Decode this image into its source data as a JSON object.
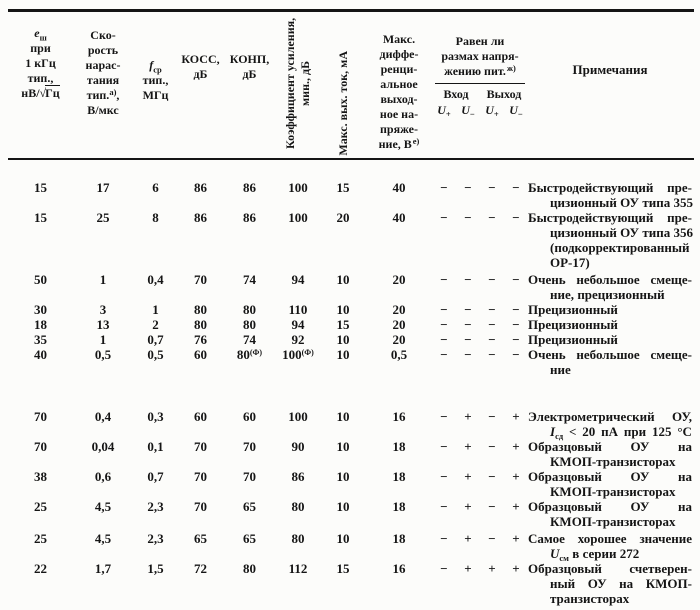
{
  "header": {
    "col1": {
      "sym": "e",
      "sym_sub": "ш",
      "l1": "при",
      "l2": "1 кГц",
      "l3": "тип.,",
      "unit_pre": "нВ/",
      "radical": "√",
      "radicand": "Гц"
    },
    "col2": {
      "l1": "Ско-",
      "l2": "рость",
      "l3": "нарас-",
      "l4": "тания",
      "l5": "тип.",
      "l5_sup": "а)",
      "l5_tail": ",",
      "l6": "В/мкс"
    },
    "col3": {
      "sym": "f",
      "sym_sub": "ср",
      "l1": "тип.,",
      "l2": "МГц"
    },
    "col4": {
      "l1": "КОСС,",
      "l2": "дБ"
    },
    "col5": {
      "l1": "КОНП,",
      "l2": "дБ"
    },
    "col6": {
      "line1": "Коэффициент усиления,",
      "line2": "мин., дБ"
    },
    "col7": {
      "line1": "Макс. вых. ток, мА"
    },
    "col8": {
      "l1": "Макс.",
      "l2": "диффе-",
      "l3": "ренци-",
      "l4": "альное",
      "l5": "выход-",
      "l6": "ное на-",
      "l7": "пряже-",
      "l8": "ние, В",
      "l8_sup": "е)"
    },
    "rail": {
      "title_l1": "Равен ли",
      "title_l2": "размах напря-",
      "title_l3": "жению пит.",
      "title_sup": "ж)",
      "in_label": "Вход",
      "out_label": "Выход",
      "u_sym": "U",
      "sub_plus": "+",
      "sub_minus": "−"
    },
    "notes_label": "Примечания"
  },
  "rows": [
    {
      "cells": [
        "15",
        "17",
        "6",
        "86",
        "86",
        "100",
        "15",
        "40"
      ],
      "signs": [
        "−",
        "−",
        "−",
        "−"
      ],
      "remark": [
        {
          "j": 1,
          "s": [
            {
              "t": "Быстродействующий пре-"
            }
          ]
        },
        {
          "ind": 1,
          "s": [
            {
              "t": "цизионный ОУ типа 355"
            }
          ]
        }
      ]
    },
    {
      "cells": [
        "15",
        "25",
        "8",
        "86",
        "86",
        "100",
        "20",
        "40"
      ],
      "signs": [
        "−",
        "−",
        "−",
        "−"
      ],
      "remark": [
        {
          "j": 1,
          "s": [
            {
              "t": "Быстродействующий пре-"
            }
          ]
        },
        {
          "ind": 1,
          "s": [
            {
              "t": "цизионный ОУ типа 356"
            }
          ]
        },
        {
          "ind": 1,
          "s": [
            {
              "t": "(подкорректированный"
            }
          ]
        },
        {
          "ind": 1,
          "s": [
            {
              "t": "ОР-17)"
            }
          ]
        }
      ]
    },
    {
      "gap": "sm",
      "cells": [
        "50",
        "1",
        "0,4",
        "70",
        "74",
        "94",
        "10",
        "20"
      ],
      "signs": [
        "−",
        "−",
        "−",
        "−"
      ],
      "remark": [
        {
          "j": 1,
          "s": [
            {
              "t": "Очень небольшое смеще-"
            }
          ]
        },
        {
          "ind": 1,
          "s": [
            {
              "t": "ние, прецизионный"
            }
          ]
        }
      ]
    },
    {
      "cells": [
        "30",
        "3",
        "1",
        "80",
        "80",
        "110",
        "10",
        "20"
      ],
      "signs": [
        "−",
        "−",
        "−",
        "−"
      ],
      "remark": [
        {
          "s": [
            {
              "t": "Прецизионный"
            }
          ]
        }
      ]
    },
    {
      "cells": [
        "18",
        "13",
        "2",
        "80",
        "80",
        "94",
        "15",
        "20"
      ],
      "signs": [
        "−",
        "−",
        "−",
        "−"
      ],
      "remark": [
        {
          "s": [
            {
              "t": "Прецизионный"
            }
          ]
        }
      ]
    },
    {
      "cells": [
        "35",
        "1",
        "0,7",
        "76",
        "74",
        "92",
        "10",
        "20"
      ],
      "signs": [
        "−",
        "−",
        "−",
        "−"
      ],
      "remark": [
        {
          "s": [
            {
              "t": "Прецизионный"
            }
          ]
        }
      ]
    },
    {
      "cells": [
        "40",
        "0,5",
        "0,5",
        "60",
        "80",
        "100",
        "10",
        "0,5"
      ],
      "sups": [
        null,
        null,
        null,
        null,
        "(Ф)",
        "(Ф)",
        null,
        null
      ],
      "signs": [
        "−",
        "−",
        "−",
        "−"
      ],
      "remark": [
        {
          "j": 1,
          "s": [
            {
              "t": "Очень небольшое смеще-"
            }
          ]
        },
        {
          "ind": 1,
          "s": [
            {
              "t": "ние"
            }
          ]
        }
      ]
    },
    {
      "gap": "lg",
      "cells": [
        "70",
        "0,4",
        "0,3",
        "60",
        "60",
        "100",
        "10",
        "16"
      ],
      "signs": [
        "−",
        "+",
        "−",
        "+"
      ],
      "remark": [
        {
          "j": 1,
          "s": [
            {
              "t": "Электрометрический ОУ,"
            }
          ]
        },
        {
          "ind": 1,
          "j": 1,
          "s": [
            {
              "i": "I"
            },
            {
              "sub": "сд"
            },
            {
              "t": " < 20 пА при 125 °C"
            }
          ]
        }
      ]
    },
    {
      "cells": [
        "70",
        "0,04",
        "0,1",
        "70",
        "70",
        "90",
        "10",
        "18"
      ],
      "signs": [
        "−",
        "+",
        "−",
        "+"
      ],
      "remark": [
        {
          "j": 1,
          "s": [
            {
              "t": "Образцовый ОУ на"
            }
          ]
        },
        {
          "ind": 1,
          "s": [
            {
              "t": "КМОП-транзисторах"
            }
          ]
        }
      ]
    },
    {
      "cells": [
        "38",
        "0,6",
        "0,7",
        "70",
        "70",
        "86",
        "10",
        "18"
      ],
      "signs": [
        "−",
        "+",
        "−",
        "+"
      ],
      "remark": [
        {
          "j": 1,
          "s": [
            {
              "t": "Образцовый ОУ на"
            }
          ]
        },
        {
          "ind": 1,
          "s": [
            {
              "t": "КМОП-транзисторах"
            }
          ]
        }
      ]
    },
    {
      "cells": [
        "25",
        "4,5",
        "2,3",
        "70",
        "65",
        "80",
        "10",
        "18"
      ],
      "signs": [
        "−",
        "+",
        "−",
        "+"
      ],
      "remark": [
        {
          "j": 1,
          "s": [
            {
              "t": "Образцовый ОУ на"
            }
          ]
        },
        {
          "ind": 1,
          "s": [
            {
              "t": "КМОП-транзисторах"
            }
          ]
        }
      ]
    },
    {
      "gap": "sm",
      "cells": [
        "25",
        "4,5",
        "2,3",
        "65",
        "65",
        "80",
        "10",
        "18"
      ],
      "signs": [
        "−",
        "+",
        "−",
        "+"
      ],
      "remark": [
        {
          "j": 1,
          "s": [
            {
              "t": "Самое хорошее значение"
            }
          ]
        },
        {
          "ind": 1,
          "s": [
            {
              "i": "U"
            },
            {
              "sub": "см"
            },
            {
              "t": " в серии 272"
            }
          ]
        }
      ]
    },
    {
      "cells": [
        "22",
        "1,7",
        "1,5",
        "72",
        "80",
        "112",
        "15",
        "16"
      ],
      "signs": [
        "−",
        "+",
        "+",
        "+"
      ],
      "remark": [
        {
          "j": 1,
          "s": [
            {
              "t": "Образцовый счетверен-"
            }
          ]
        },
        {
          "ind": 1,
          "j": 1,
          "s": [
            {
              "t": "ный ОУ на КМОП-"
            }
          ]
        },
        {
          "ind": 1,
          "s": [
            {
              "t": "транзисторах"
            }
          ]
        }
      ]
    }
  ]
}
